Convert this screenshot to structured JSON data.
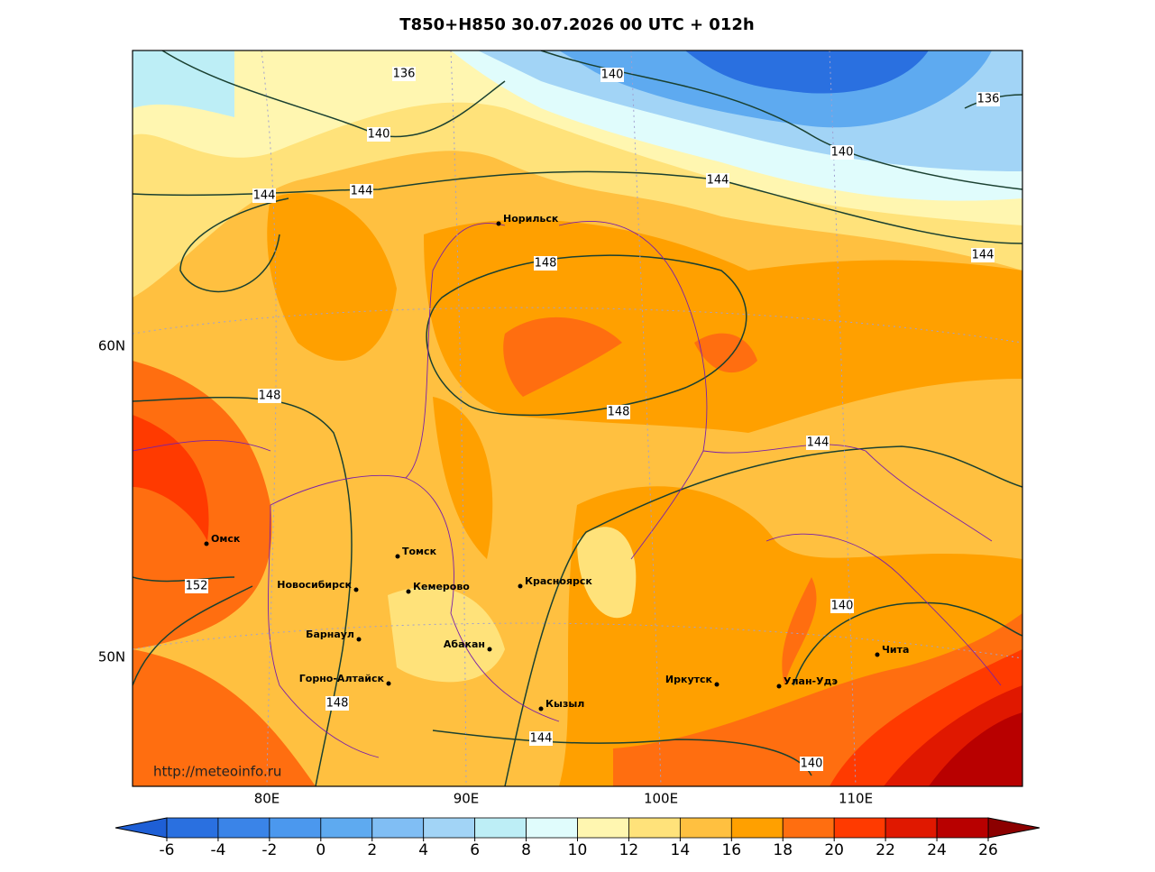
{
  "title": "T850+H850 30.07.2026 00 UTC + 012h",
  "url": "http://meteoinfo.ru",
  "lon_labels": [
    "80E",
    "90E",
    "100E",
    "110E"
  ],
  "lat_labels": [
    "60N",
    "50N"
  ],
  "cities": [
    "Норильск",
    "Омск",
    "Томск",
    "Новосибирск",
    "Кемерово",
    "Красноярск",
    "Барнаул",
    "Абакан",
    "Горно-Алтайск",
    "Кызыл",
    "Иркутск",
    "Улан-Удэ",
    "Чита"
  ],
  "contour_labels": [
    136,
    140,
    136,
    140,
    140,
    144,
    144,
    144,
    144,
    148,
    148,
    148,
    144,
    152,
    140,
    148,
    144,
    140
  ],
  "colorbar": {
    "ticks": [
      -6,
      -4,
      -2,
      0,
      2,
      4,
      6,
      8,
      10,
      12,
      14,
      16,
      18,
      20,
      22,
      24,
      26
    ],
    "colors": [
      "#1e5fd6",
      "#2a70e0",
      "#3a84e8",
      "#4b98ee",
      "#5eaaf0",
      "#80bef4",
      "#a2d4f6",
      "#bdeef6",
      "#e0fcfc",
      "#fff6b0",
      "#ffe27a",
      "#ffc040",
      "#ffa000",
      "#ff6e10",
      "#ff3a00",
      "#e01800",
      "#b80000",
      "#8c0000"
    ]
  }
}
